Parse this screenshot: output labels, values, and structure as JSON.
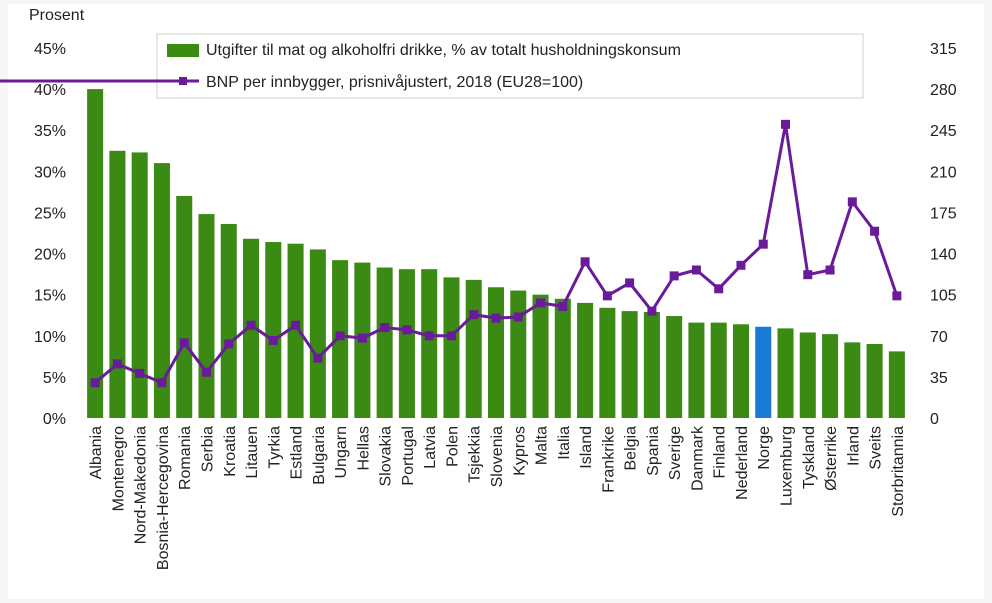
{
  "chart_data": {
    "type": "bar",
    "y_unit_label": "Prosent",
    "categories": [
      "Albania",
      "Montenegro",
      "Nord-Makedonia",
      "Bosnia-Hercegovina",
      "Romania",
      "Serbia",
      "Kroatia",
      "Litauen",
      "Tyrkia",
      "Estland",
      "Bulgaria",
      "Ungarn",
      "Hellas",
      "Slovakia",
      "Portugal",
      "Latvia",
      "Polen",
      "Tsjekkia",
      "Slovenia",
      "Kypros",
      "Malta",
      "Italia",
      "Island",
      "Frankrike",
      "Belgia",
      "Spania",
      "Sverige",
      "Danmark",
      "Finland",
      "Nederland",
      "Norge",
      "Luxemburg",
      "Tyskland",
      "Østerrike",
      "Irland",
      "Sveits",
      "Storbritannia"
    ],
    "series": [
      {
        "name": "Utgifter til mat og alkoholfri drikke, % av totalt husholdningskonsum",
        "kind": "bar",
        "axis": "left",
        "color": "#3a8a14",
        "highlight": {
          "category": "Norge",
          "color": "#1a7ad8"
        },
        "values": [
          40.0,
          32.5,
          32.3,
          31.0,
          27.0,
          24.8,
          23.6,
          21.8,
          21.4,
          21.2,
          20.5,
          19.2,
          18.9,
          18.3,
          18.1,
          18.1,
          17.1,
          16.8,
          15.9,
          15.5,
          15.0,
          14.5,
          14.0,
          13.4,
          13.0,
          12.9,
          12.4,
          11.6,
          11.6,
          11.4,
          11.1,
          10.9,
          10.4,
          10.2,
          9.2,
          9.0,
          8.1
        ]
      },
      {
        "name": "BNP per innbygger, prisnivåjustert, 2018 (EU28=100)",
        "kind": "line",
        "axis": "right",
        "color": "#6a1b9a",
        "values": [
          30,
          46,
          38,
          30,
          64,
          39,
          63,
          79,
          66,
          79,
          51,
          70,
          68,
          77,
          75,
          70,
          70,
          88,
          85,
          86,
          98,
          95,
          133,
          104,
          115,
          91,
          121,
          126,
          110,
          130,
          148,
          250,
          122,
          126,
          184,
          159,
          104
        ]
      }
    ],
    "y_left": {
      "min": 0,
      "max": 45,
      "step": 5,
      "suffix": "%"
    },
    "y_right": {
      "min": 0,
      "max": 315,
      "step": 35
    },
    "legend_position": "top-center",
    "grid": false
  }
}
